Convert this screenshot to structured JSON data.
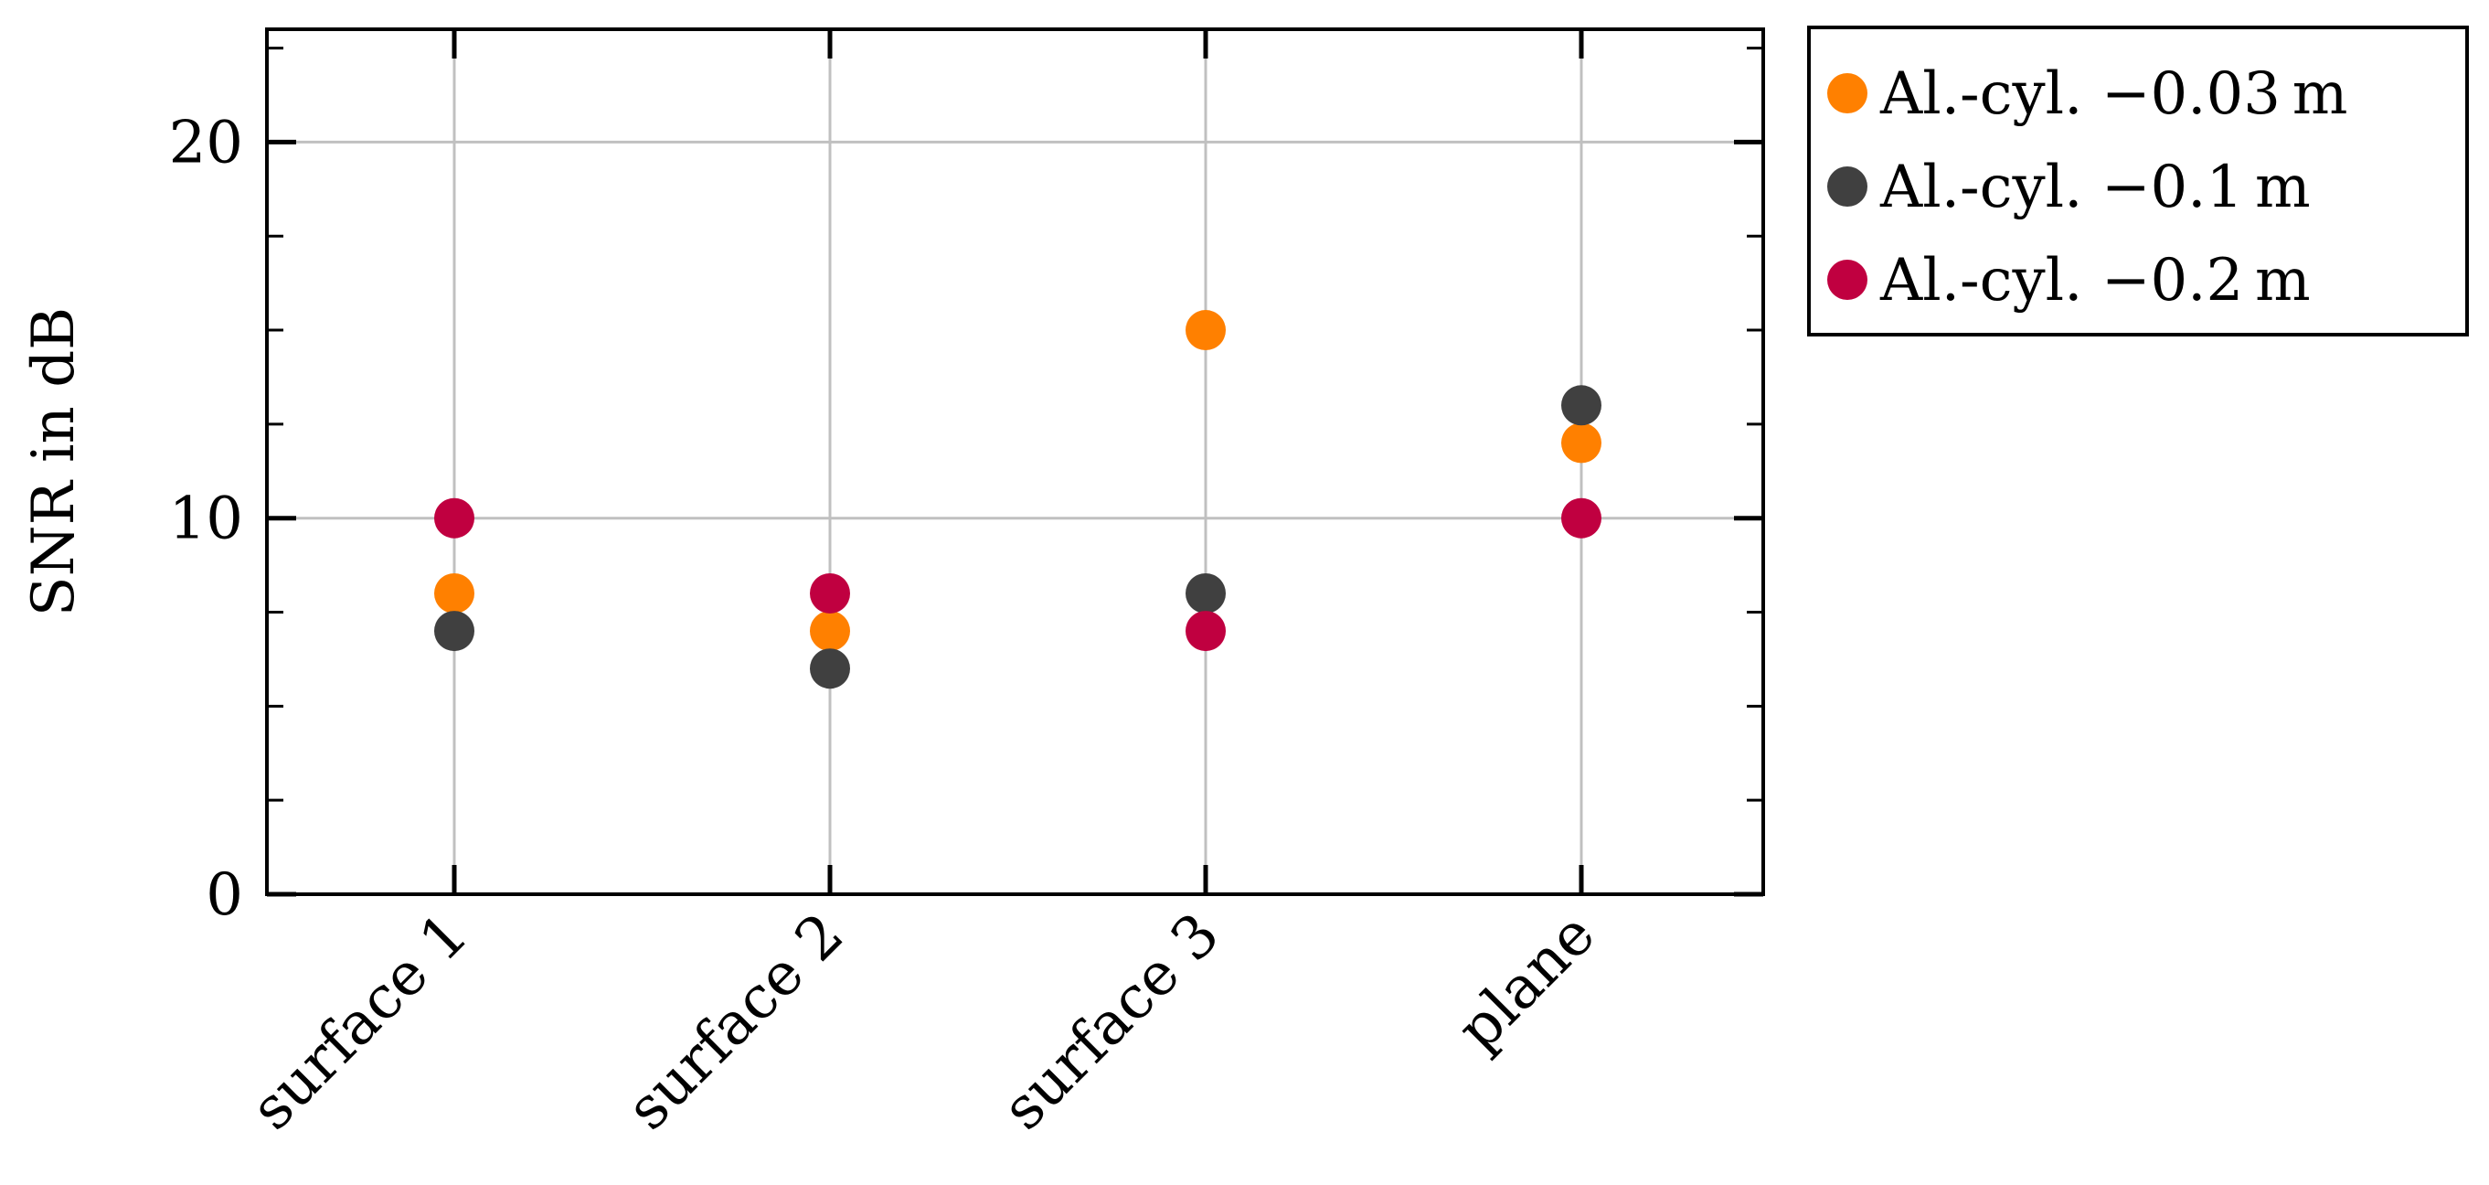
{
  "chart_data": {
    "type": "scatter",
    "title": "",
    "xlabel": "",
    "ylabel": "SNR in dB",
    "categories": [
      "surface 1",
      "surface 2",
      "surface 3",
      "plane"
    ],
    "ylim": [
      0,
      23
    ],
    "yticks": [
      0,
      10,
      20
    ],
    "grid": true,
    "legend_position": "outside-top-right",
    "series": [
      {
        "name": "Al.-cyl. −0.03 m",
        "color": "#ff8000",
        "values": [
          8,
          7,
          15,
          12
        ]
      },
      {
        "name": "Al.-cyl. −0.1 m",
        "color": "#404040",
        "values": [
          7,
          6,
          8,
          13
        ]
      },
      {
        "name": "Al.-cyl. −0.2 m",
        "color": "#c00040",
        "values": [
          10,
          8,
          7,
          10
        ]
      }
    ]
  }
}
